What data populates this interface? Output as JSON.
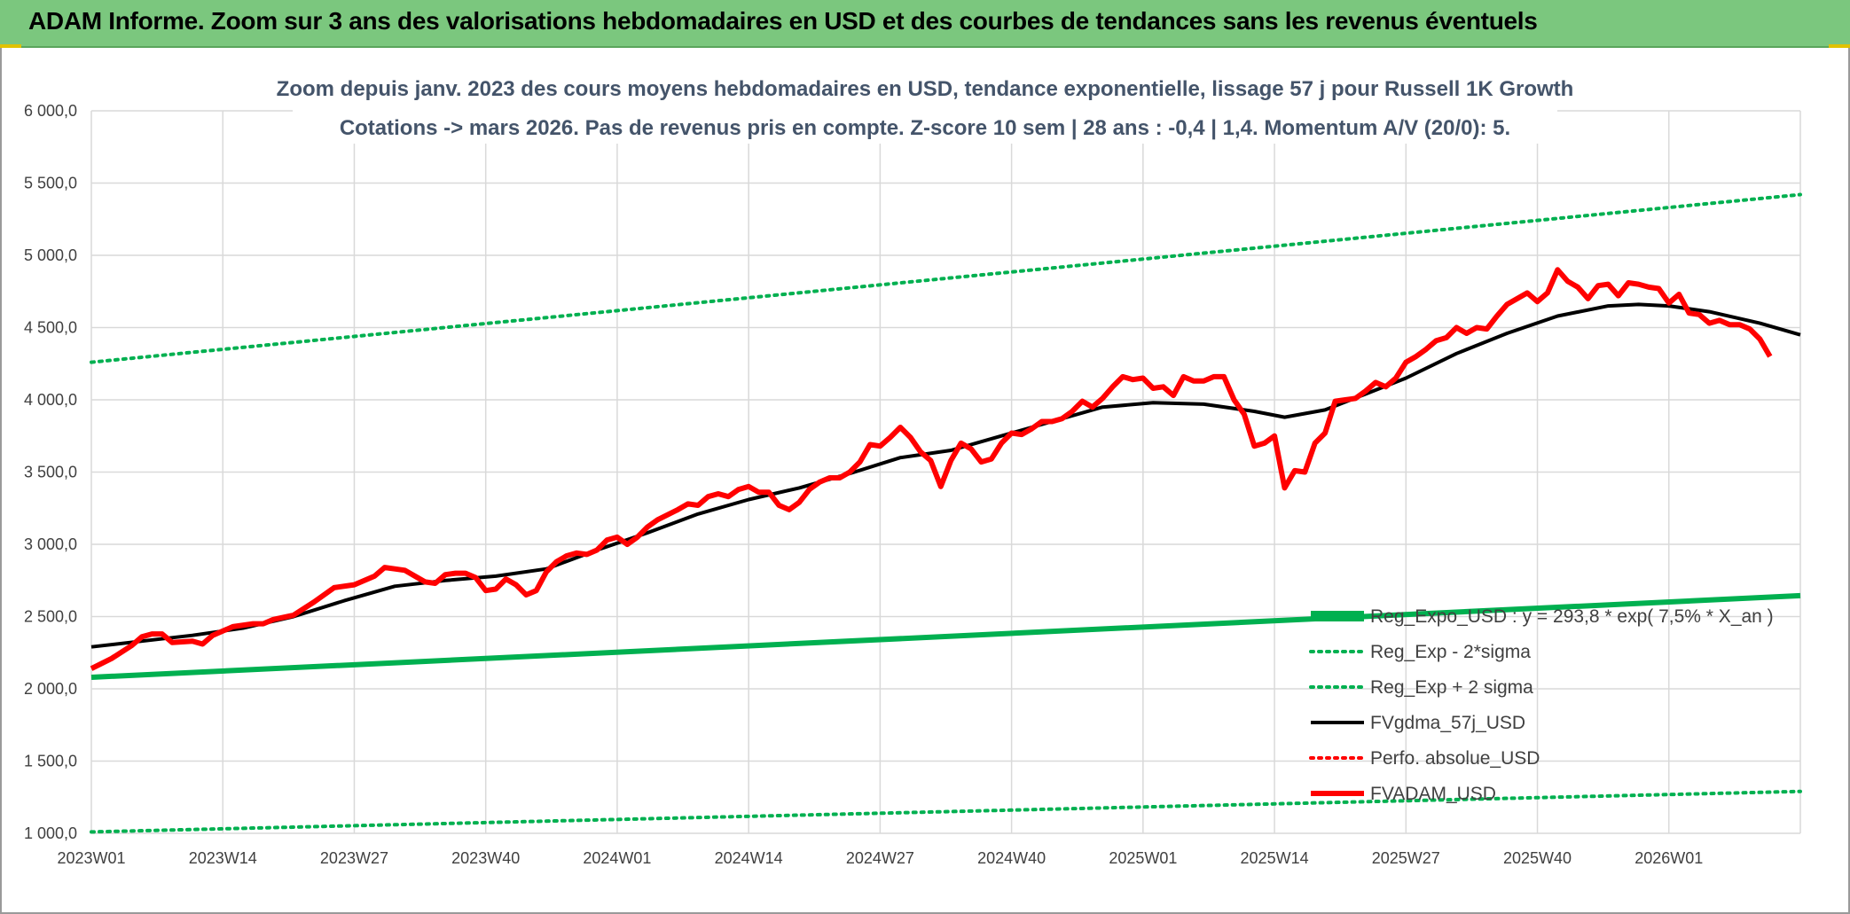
{
  "page": {
    "banner_title": "ADAM Informe. Zoom sur 3 ans des valorisations hebdomadaires en USD et des courbes de tendances sans les revenus éventuels",
    "colors": {
      "banner": "#7bc77e",
      "accent": "#e0c200"
    }
  },
  "chart_data": {
    "type": "line",
    "title_line1": "Zoom depuis janv. 2023 des cours moyens hebdomadaires en USD, tendance exponentielle, lissage 57 j pour Russell 1K Growth",
    "title_line2": "Cotations -> mars 2026. Pas de revenus pris en compte. Z-score 10 sem | 28 ans : -0,4 | 1,4. Momentum A/V (20/0): 5.",
    "ylim": [
      1000,
      6000
    ],
    "y_ticks": [
      "1 000,0",
      "1 500,0",
      "2 000,0",
      "2 500,0",
      "3 000,0",
      "3 500,0",
      "4 000,0",
      "4 500,0",
      "5 000,0",
      "5 500,0",
      "6 000,0"
    ],
    "x_ticks": [
      "2023W01",
      "2023W14",
      "2023W27",
      "2023W40",
      "2024W01",
      "2024W14",
      "2024W27",
      "2024W40",
      "2025W01",
      "2025W14",
      "2025W27",
      "2025W40",
      "2026W01"
    ],
    "x_tick_weeks": [
      0,
      13,
      26,
      39,
      52,
      65,
      78,
      91,
      104,
      117,
      130,
      143,
      156
    ],
    "x_range_weeks": [
      0,
      169
    ],
    "grid": true,
    "legend_position": "bottom-right",
    "series": [
      {
        "name": "Reg_Expo_USD : y = 293,8 * exp( 7,5% * X_an )",
        "color": "#00b050",
        "style": "solid-thick",
        "points": [
          [
            0,
            2080
          ],
          [
            169,
            2645
          ]
        ]
      },
      {
        "name": "Reg_Exp - 2*sigma",
        "color": "#00b050",
        "style": "dotted",
        "points": [
          [
            0,
            1010
          ],
          [
            169,
            1290
          ]
        ]
      },
      {
        "name": "Reg_Exp + 2 sigma",
        "color": "#00b050",
        "style": "dotted",
        "points": [
          [
            0,
            4260
          ],
          [
            169,
            5420
          ]
        ]
      },
      {
        "name": "FVgdma_57j_USD",
        "color": "#000000",
        "style": "solid",
        "points": [
          [
            0,
            2290
          ],
          [
            5,
            2330
          ],
          [
            10,
            2370
          ],
          [
            15,
            2420
          ],
          [
            20,
            2500
          ],
          [
            25,
            2610
          ],
          [
            30,
            2710
          ],
          [
            35,
            2750
          ],
          [
            40,
            2780
          ],
          [
            45,
            2830
          ],
          [
            50,
            2960
          ],
          [
            55,
            3080
          ],
          [
            60,
            3210
          ],
          [
            65,
            3310
          ],
          [
            70,
            3390
          ],
          [
            75,
            3490
          ],
          [
            80,
            3600
          ],
          [
            85,
            3650
          ],
          [
            90,
            3750
          ],
          [
            95,
            3850
          ],
          [
            100,
            3950
          ],
          [
            105,
            3980
          ],
          [
            110,
            3970
          ],
          [
            115,
            3920
          ],
          [
            118,
            3880
          ],
          [
            122,
            3930
          ],
          [
            126,
            4040
          ],
          [
            130,
            4150
          ],
          [
            135,
            4320
          ],
          [
            140,
            4460
          ],
          [
            145,
            4580
          ],
          [
            150,
            4650
          ],
          [
            153,
            4660
          ],
          [
            156,
            4650
          ],
          [
            160,
            4610
          ],
          [
            165,
            4530
          ],
          [
            169,
            4450
          ]
        ]
      },
      {
        "name": "Perfo. absolue_USD",
        "color": "#ff0000",
        "style": "dotted",
        "points": []
      },
      {
        "name": "FVADAM_USD",
        "color": "#ff0000",
        "style": "solid-thick",
        "points": [
          [
            0,
            2140
          ],
          [
            2,
            2210
          ],
          [
            4,
            2300
          ],
          [
            5,
            2360
          ],
          [
            6,
            2380
          ],
          [
            7,
            2380
          ],
          [
            8,
            2320
          ],
          [
            10,
            2330
          ],
          [
            11,
            2310
          ],
          [
            12,
            2370
          ],
          [
            14,
            2430
          ],
          [
            16,
            2450
          ],
          [
            17,
            2450
          ],
          [
            18,
            2480
          ],
          [
            20,
            2510
          ],
          [
            22,
            2600
          ],
          [
            24,
            2700
          ],
          [
            26,
            2720
          ],
          [
            28,
            2780
          ],
          [
            29,
            2840
          ],
          [
            30,
            2830
          ],
          [
            31,
            2820
          ],
          [
            32,
            2780
          ],
          [
            33,
            2740
          ],
          [
            34,
            2730
          ],
          [
            35,
            2790
          ],
          [
            36,
            2800
          ],
          [
            37,
            2800
          ],
          [
            38,
            2770
          ],
          [
            39,
            2680
          ],
          [
            40,
            2690
          ],
          [
            41,
            2760
          ],
          [
            42,
            2720
          ],
          [
            43,
            2650
          ],
          [
            44,
            2680
          ],
          [
            45,
            2810
          ],
          [
            46,
            2880
          ],
          [
            47,
            2920
          ],
          [
            48,
            2940
          ],
          [
            49,
            2930
          ],
          [
            50,
            2960
          ],
          [
            51,
            3030
          ],
          [
            52,
            3050
          ],
          [
            53,
            3000
          ],
          [
            54,
            3050
          ],
          [
            55,
            3120
          ],
          [
            56,
            3170
          ],
          [
            58,
            3240
          ],
          [
            59,
            3280
          ],
          [
            60,
            3270
          ],
          [
            61,
            3330
          ],
          [
            62,
            3350
          ],
          [
            63,
            3330
          ],
          [
            64,
            3380
          ],
          [
            65,
            3400
          ],
          [
            66,
            3360
          ],
          [
            67,
            3360
          ],
          [
            68,
            3270
          ],
          [
            69,
            3240
          ],
          [
            70,
            3290
          ],
          [
            71,
            3380
          ],
          [
            72,
            3430
          ],
          [
            73,
            3460
          ],
          [
            74,
            3460
          ],
          [
            75,
            3500
          ],
          [
            76,
            3570
          ],
          [
            77,
            3690
          ],
          [
            78,
            3680
          ],
          [
            79,
            3740
          ],
          [
            80,
            3810
          ],
          [
            81,
            3740
          ],
          [
            82,
            3640
          ],
          [
            83,
            3580
          ],
          [
            84,
            3400
          ],
          [
            85,
            3580
          ],
          [
            86,
            3700
          ],
          [
            87,
            3660
          ],
          [
            88,
            3570
          ],
          [
            89,
            3590
          ],
          [
            90,
            3700
          ],
          [
            91,
            3770
          ],
          [
            92,
            3760
          ],
          [
            93,
            3800
          ],
          [
            94,
            3850
          ],
          [
            95,
            3850
          ],
          [
            96,
            3870
          ],
          [
            97,
            3920
          ],
          [
            98,
            3990
          ],
          [
            99,
            3950
          ],
          [
            100,
            4010
          ],
          [
            101,
            4090
          ],
          [
            102,
            4160
          ],
          [
            103,
            4140
          ],
          [
            104,
            4150
          ],
          [
            105,
            4080
          ],
          [
            106,
            4090
          ],
          [
            107,
            4030
          ],
          [
            108,
            4160
          ],
          [
            109,
            4130
          ],
          [
            110,
            4130
          ],
          [
            111,
            4160
          ],
          [
            112,
            4160
          ],
          [
            113,
            4000
          ],
          [
            114,
            3900
          ],
          [
            115,
            3680
          ],
          [
            116,
            3700
          ],
          [
            117,
            3750
          ],
          [
            118,
            3390
          ],
          [
            119,
            3510
          ],
          [
            120,
            3500
          ],
          [
            121,
            3700
          ],
          [
            122,
            3770
          ],
          [
            123,
            3990
          ],
          [
            124,
            4000
          ],
          [
            125,
            4010
          ],
          [
            126,
            4060
          ],
          [
            127,
            4120
          ],
          [
            128,
            4090
          ],
          [
            129,
            4150
          ],
          [
            130,
            4260
          ],
          [
            131,
            4300
          ],
          [
            132,
            4350
          ],
          [
            133,
            4410
          ],
          [
            134,
            4430
          ],
          [
            135,
            4500
          ],
          [
            136,
            4460
          ],
          [
            137,
            4500
          ],
          [
            138,
            4490
          ],
          [
            139,
            4580
          ],
          [
            140,
            4660
          ],
          [
            141,
            4700
          ],
          [
            142,
            4740
          ],
          [
            143,
            4680
          ],
          [
            144,
            4740
          ],
          [
            145,
            4900
          ],
          [
            146,
            4820
          ],
          [
            147,
            4780
          ],
          [
            148,
            4700
          ],
          [
            149,
            4790
          ],
          [
            150,
            4800
          ],
          [
            151,
            4720
          ],
          [
            152,
            4810
          ],
          [
            153,
            4800
          ],
          [
            154,
            4780
          ],
          [
            155,
            4770
          ],
          [
            156,
            4670
          ],
          [
            157,
            4730
          ],
          [
            158,
            4600
          ],
          [
            159,
            4590
          ],
          [
            160,
            4530
          ],
          [
            161,
            4550
          ],
          [
            162,
            4520
          ],
          [
            163,
            4520
          ],
          [
            164,
            4490
          ],
          [
            165,
            4420
          ],
          [
            166,
            4300
          ]
        ]
      }
    ]
  }
}
